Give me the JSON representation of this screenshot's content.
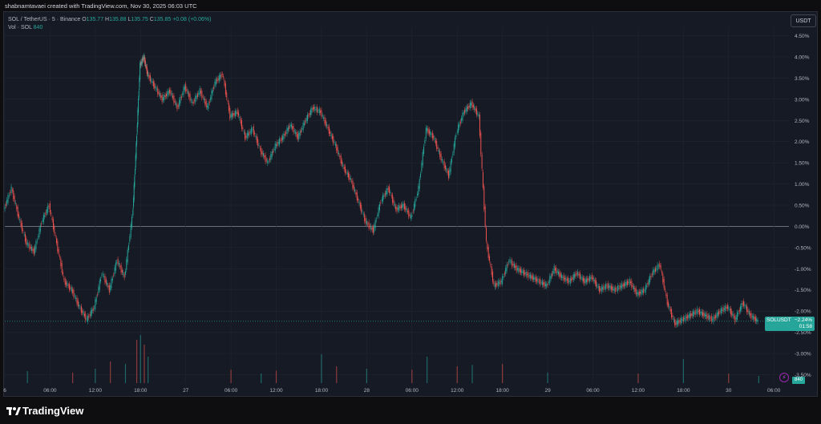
{
  "header": {
    "attribution": "shabnamtavaei created with TradingView.com, Nov 30, 2025 06:03 UTC"
  },
  "legend": {
    "symbol_line": "SOL / TetherUS · 5 · Binance",
    "open_label": "O",
    "open": "135.77",
    "high_label": "H",
    "high": "135.88",
    "low_label": "L",
    "low": "135.75",
    "close_label": "C",
    "close": "135.85",
    "change": "+0.08 (+0.06%)",
    "volume_label": "Vol · SOL",
    "volume": "840"
  },
  "currency_button": "USDT",
  "price_badge": {
    "symbol": "SOLUSDT",
    "change": "−2.24%",
    "countdown": "01:58"
  },
  "volume_badge": "840",
  "colors": {
    "up": "#26a69a",
    "down": "#ef5350",
    "background": "#161a25",
    "zero_line": "#787b86"
  },
  "footer": {
    "brand": "TradingView",
    "logo_icon": "tradingview-logo-icon"
  },
  "chart_data": {
    "type": "line",
    "style": "candlestick",
    "title": "SOL / TetherUS · 5 · Binance",
    "y_scale": "percent",
    "ylim": [
      -3.7,
      4.7
    ],
    "y_ticks": [
      "4.50%",
      "4.00%",
      "3.50%",
      "3.00%",
      "2.50%",
      "2.00%",
      "1.50%",
      "1.00%",
      "0.50%",
      "0.00%",
      "-0.50%",
      "-1.00%",
      "-1.50%",
      "-2.00%",
      "-2.50%",
      "-3.00%",
      "-3.50%"
    ],
    "y_tick_values": [
      4.5,
      4.0,
      3.5,
      3.0,
      2.5,
      2.0,
      1.5,
      1.0,
      0.5,
      0.0,
      -0.5,
      -1.0,
      -1.5,
      -2.0,
      -2.5,
      -3.0,
      -3.5
    ],
    "x_tick_labels": [
      "6",
      "06:00",
      "12:00",
      "18:00",
      "27",
      "06:00",
      "12:00",
      "18:00",
      "28",
      "06:00",
      "12:00",
      "18:00",
      "29",
      "06:00",
      "12:00",
      "18:00",
      "30",
      "06:00"
    ],
    "x_tick_hours": [
      0,
      6,
      12,
      18,
      24,
      30,
      36,
      42,
      48,
      54,
      60,
      66,
      72,
      78,
      84,
      90,
      96,
      102
    ],
    "xlim_hours": [
      0,
      104
    ],
    "series": [
      {
        "name": "SOL / TetherUS",
        "x_hours": [
          0,
          1,
          2,
          3,
          4,
          5,
          6,
          7,
          8,
          9,
          10,
          11,
          12,
          13,
          14,
          15,
          16,
          17,
          17.5,
          18,
          18.5,
          19,
          20,
          21,
          22,
          23,
          24,
          25,
          26,
          27,
          28,
          29,
          30,
          31,
          32,
          33,
          34,
          35,
          36,
          37,
          38,
          39,
          40,
          41,
          42,
          43,
          44,
          45,
          46,
          47,
          48,
          49,
          50,
          51,
          52,
          53,
          54,
          55,
          56,
          57,
          58,
          59,
          60,
          61,
          62,
          63,
          64,
          65,
          66,
          67,
          68,
          69,
          70,
          71,
          72,
          73,
          74,
          75,
          76,
          77,
          78,
          79,
          80,
          81,
          82,
          83,
          84,
          85,
          86,
          87,
          88,
          89,
          90,
          91,
          92,
          93,
          94,
          95,
          96,
          97,
          98,
          99,
          100
        ],
        "values": [
          0.4,
          0.9,
          0.2,
          -0.4,
          -0.6,
          0.1,
          0.5,
          -0.4,
          -1.3,
          -1.5,
          -1.9,
          -2.2,
          -1.9,
          -1.1,
          -1.5,
          -0.8,
          -1.2,
          0.2,
          1.9,
          3.8,
          4.0,
          3.6,
          3.3,
          3.0,
          3.2,
          2.8,
          3.3,
          2.9,
          3.2,
          2.8,
          3.4,
          3.6,
          2.6,
          2.7,
          2.1,
          2.3,
          1.8,
          1.5,
          1.9,
          2.1,
          2.4,
          2.1,
          2.5,
          2.8,
          2.7,
          2.3,
          1.9,
          1.4,
          1.1,
          0.6,
          0.1,
          -0.1,
          0.6,
          0.9,
          0.4,
          0.5,
          0.2,
          0.9,
          2.3,
          2.1,
          1.6,
          1.2,
          2.2,
          2.7,
          2.9,
          2.6,
          -0.4,
          -1.4,
          -1.3,
          -0.8,
          -1.0,
          -1.1,
          -1.2,
          -1.3,
          -1.4,
          -1.0,
          -1.2,
          -1.3,
          -1.1,
          -1.3,
          -1.2,
          -1.5,
          -1.4,
          -1.5,
          -1.4,
          -1.3,
          -1.6,
          -1.5,
          -1.1,
          -0.9,
          -1.8,
          -2.3,
          -2.2,
          -2.1,
          -2.0,
          -2.1,
          -2.2,
          -2.0,
          -1.9,
          -2.2,
          -1.8,
          -2.1,
          -2.24
        ]
      }
    ],
    "volume_series": {
      "name": "Vol · SOL",
      "x_hours": [
        3,
        9,
        12,
        14,
        16,
        17.5,
        18,
        18.5,
        19,
        30,
        34,
        36,
        42,
        44,
        48,
        54,
        56,
        60,
        62,
        66,
        72,
        84,
        90,
        96,
        100
      ],
      "values": [
        25,
        22,
        30,
        45,
        40,
        90,
        100,
        80,
        55,
        28,
        20,
        26,
        60,
        35,
        30,
        28,
        55,
        35,
        38,
        40,
        22,
        20,
        50,
        20,
        15
      ]
    }
  }
}
